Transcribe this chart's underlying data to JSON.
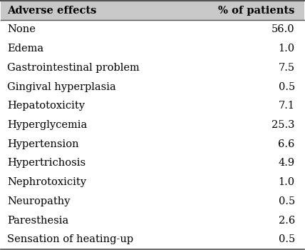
{
  "header": [
    "Adverse effects",
    "% of patients"
  ],
  "rows": [
    [
      "None",
      "56.0"
    ],
    [
      "Edema",
      "1.0"
    ],
    [
      "Gastrointestinal problem",
      "7.5"
    ],
    [
      "Gingival hyperplasia",
      "0.5"
    ],
    [
      "Hepatotoxicity",
      "7.1"
    ],
    [
      "Hyperglycemia",
      "25.3"
    ],
    [
      "Hypertension",
      "6.6"
    ],
    [
      "Hypertrichosis",
      "4.9"
    ],
    [
      "Nephrotoxicity",
      "1.0"
    ],
    [
      "Neuropathy",
      "0.5"
    ],
    [
      "Paresthesia",
      "2.6"
    ],
    [
      "Sensation of heating-up",
      "0.5"
    ]
  ],
  "header_bg": "#c8c8c8",
  "bg_color": "#ffffff",
  "text_color": "#000000",
  "header_fontsize": 10.5,
  "row_fontsize": 10.5,
  "col_split": 0.63
}
